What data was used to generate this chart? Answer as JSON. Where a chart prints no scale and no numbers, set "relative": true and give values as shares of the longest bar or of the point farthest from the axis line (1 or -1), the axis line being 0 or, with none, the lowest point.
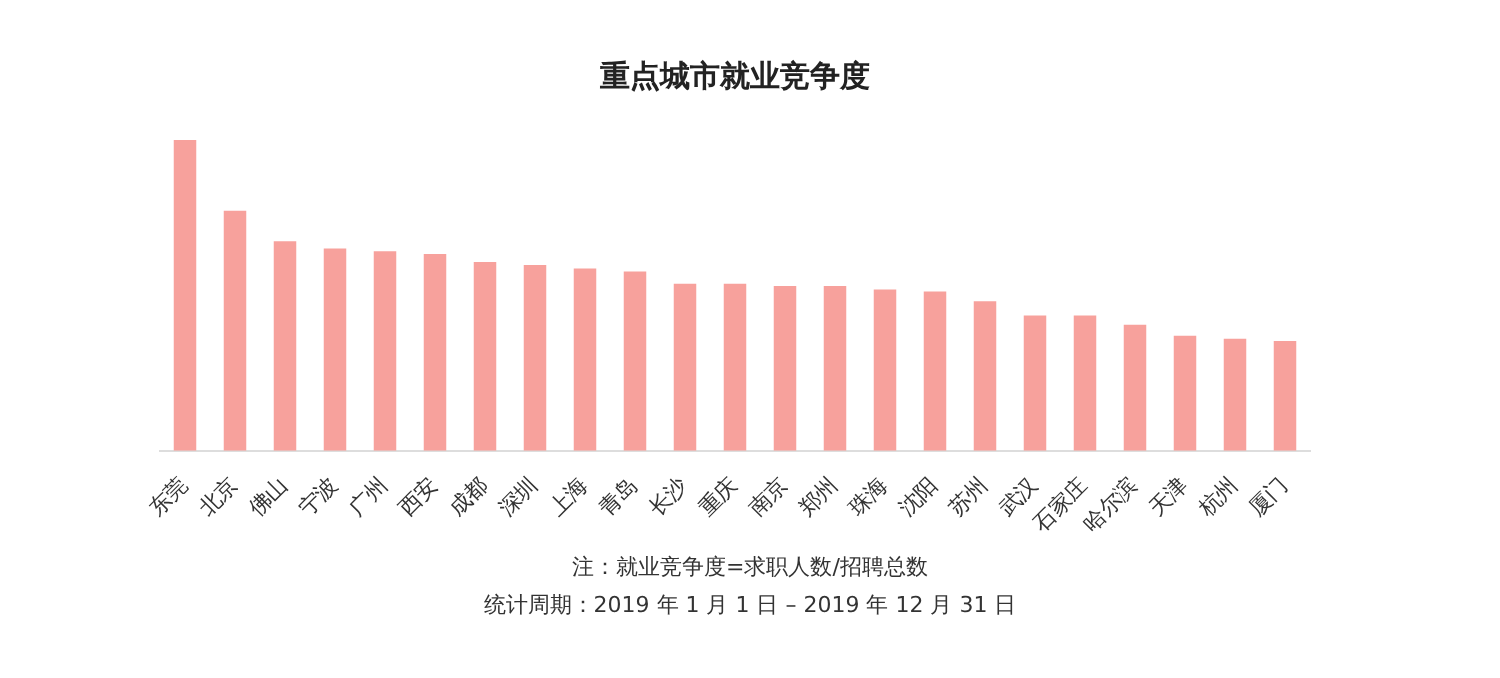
{
  "chart_data": {
    "type": "bar",
    "title": "重点城市就业竞争度",
    "relative": true,
    "categories": [
      "东莞",
      "北京",
      "佛山",
      "宁波",
      "广州",
      "西安",
      "成都",
      "深圳",
      "上海",
      "青岛",
      "长沙",
      "重庆",
      "南京",
      "郑州",
      "珠海",
      "沈阳",
      "苏州",
      "武汉",
      "石家庄",
      "哈尔滨",
      "天津",
      "杭州",
      "厦门"
    ],
    "values": [
      1,
      0.772,
      0.674,
      0.651,
      0.642,
      0.633,
      0.607,
      0.598,
      0.586,
      0.577,
      0.537,
      0.537,
      0.53,
      0.53,
      0.519,
      0.512,
      0.481,
      0.435,
      0.435,
      0.405,
      0.37,
      0.36,
      0.353
    ],
    "color": "#f7a19c",
    "legend": false,
    "annotations": [
      "注：就业竞争度=求职人数/招聘总数",
      "统计周期：2019 年 1 月 1 日 – 2019 年 12 月 31 日"
    ]
  }
}
